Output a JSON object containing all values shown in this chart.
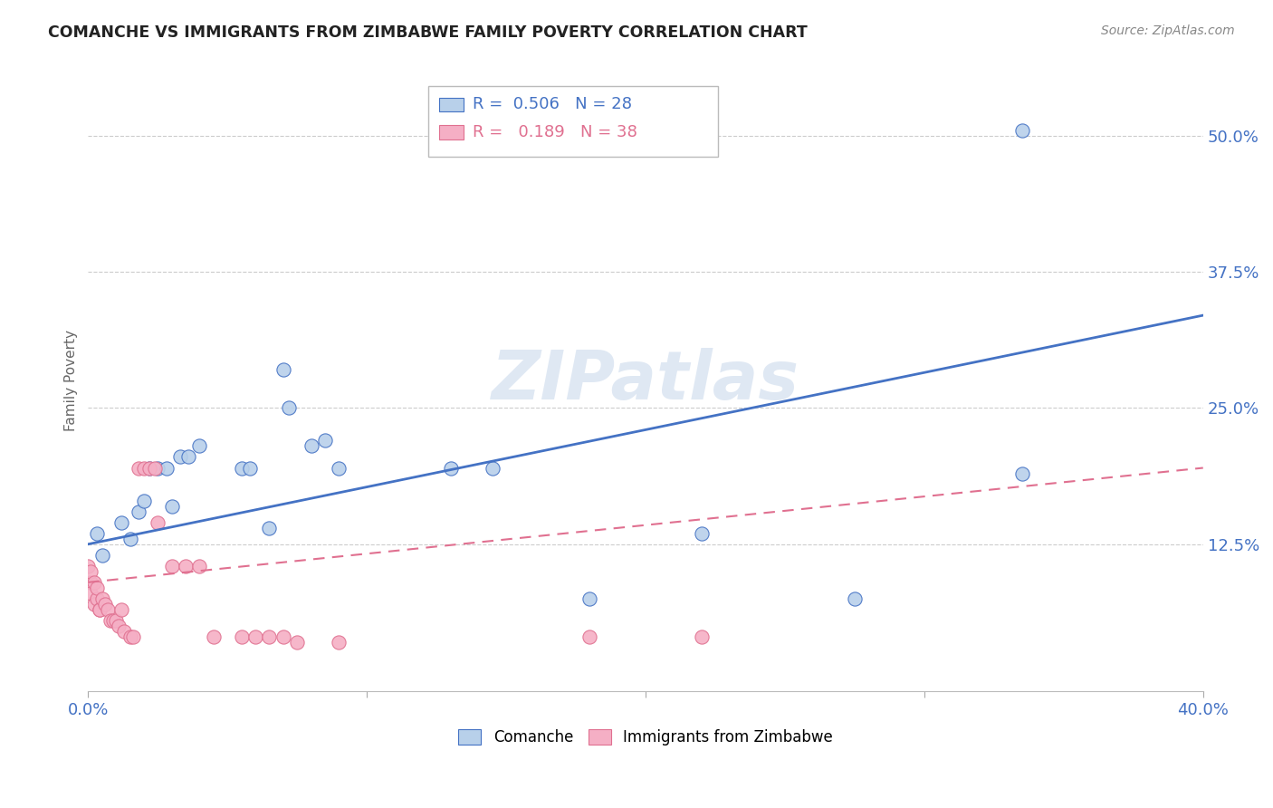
{
  "title": "COMANCHE VS IMMIGRANTS FROM ZIMBABWE FAMILY POVERTY CORRELATION CHART",
  "source": "Source: ZipAtlas.com",
  "ylabel": "Family Poverty",
  "ytick_vals": [
    0.125,
    0.25,
    0.375,
    0.5
  ],
  "ytick_labels": [
    "12.5%",
    "25.0%",
    "37.5%",
    "50.0%"
  ],
  "xlim": [
    0.0,
    0.4
  ],
  "ylim": [
    -0.01,
    0.56
  ],
  "watermark": "ZIPatlas",
  "legend1_r": "0.506",
  "legend1_n": "28",
  "legend2_r": "0.189",
  "legend2_n": "38",
  "comanche_color": "#b8d0ea",
  "zimbabwe_color": "#f5afc5",
  "blue_line_color": "#4472c4",
  "pink_line_color": "#e07090",
  "comanche_scatter": [
    [
      0.003,
      0.135
    ],
    [
      0.005,
      0.115
    ],
    [
      0.012,
      0.145
    ],
    [
      0.015,
      0.13
    ],
    [
      0.018,
      0.155
    ],
    [
      0.02,
      0.165
    ],
    [
      0.022,
      0.195
    ],
    [
      0.025,
      0.195
    ],
    [
      0.028,
      0.195
    ],
    [
      0.03,
      0.16
    ],
    [
      0.033,
      0.205
    ],
    [
      0.036,
      0.205
    ],
    [
      0.04,
      0.215
    ],
    [
      0.055,
      0.195
    ],
    [
      0.058,
      0.195
    ],
    [
      0.065,
      0.14
    ],
    [
      0.07,
      0.285
    ],
    [
      0.072,
      0.25
    ],
    [
      0.08,
      0.215
    ],
    [
      0.085,
      0.22
    ],
    [
      0.09,
      0.195
    ],
    [
      0.13,
      0.195
    ],
    [
      0.145,
      0.195
    ],
    [
      0.18,
      0.075
    ],
    [
      0.22,
      0.135
    ],
    [
      0.275,
      0.075
    ],
    [
      0.335,
      0.19
    ],
    [
      0.335,
      0.505
    ]
  ],
  "zimbabwe_scatter": [
    [
      0.0,
      0.105
    ],
    [
      0.001,
      0.09
    ],
    [
      0.001,
      0.1
    ],
    [
      0.001,
      0.08
    ],
    [
      0.002,
      0.07
    ],
    [
      0.002,
      0.09
    ],
    [
      0.003,
      0.075
    ],
    [
      0.003,
      0.085
    ],
    [
      0.004,
      0.065
    ],
    [
      0.004,
      0.065
    ],
    [
      0.005,
      0.075
    ],
    [
      0.006,
      0.07
    ],
    [
      0.007,
      0.065
    ],
    [
      0.008,
      0.055
    ],
    [
      0.009,
      0.055
    ],
    [
      0.01,
      0.055
    ],
    [
      0.011,
      0.05
    ],
    [
      0.012,
      0.065
    ],
    [
      0.013,
      0.045
    ],
    [
      0.015,
      0.04
    ],
    [
      0.016,
      0.04
    ],
    [
      0.018,
      0.195
    ],
    [
      0.02,
      0.195
    ],
    [
      0.022,
      0.195
    ],
    [
      0.024,
      0.195
    ],
    [
      0.025,
      0.145
    ],
    [
      0.03,
      0.105
    ],
    [
      0.035,
      0.105
    ],
    [
      0.04,
      0.105
    ],
    [
      0.045,
      0.04
    ],
    [
      0.055,
      0.04
    ],
    [
      0.06,
      0.04
    ],
    [
      0.065,
      0.04
    ],
    [
      0.07,
      0.04
    ],
    [
      0.075,
      0.035
    ],
    [
      0.09,
      0.035
    ],
    [
      0.18,
      0.04
    ],
    [
      0.22,
      0.04
    ]
  ],
  "comanche_line_x": [
    0.0,
    0.4
  ],
  "comanche_line_y": [
    0.125,
    0.335
  ],
  "zimbabwe_line_x": [
    0.0,
    0.4
  ],
  "zimbabwe_line_y": [
    0.09,
    0.195
  ]
}
